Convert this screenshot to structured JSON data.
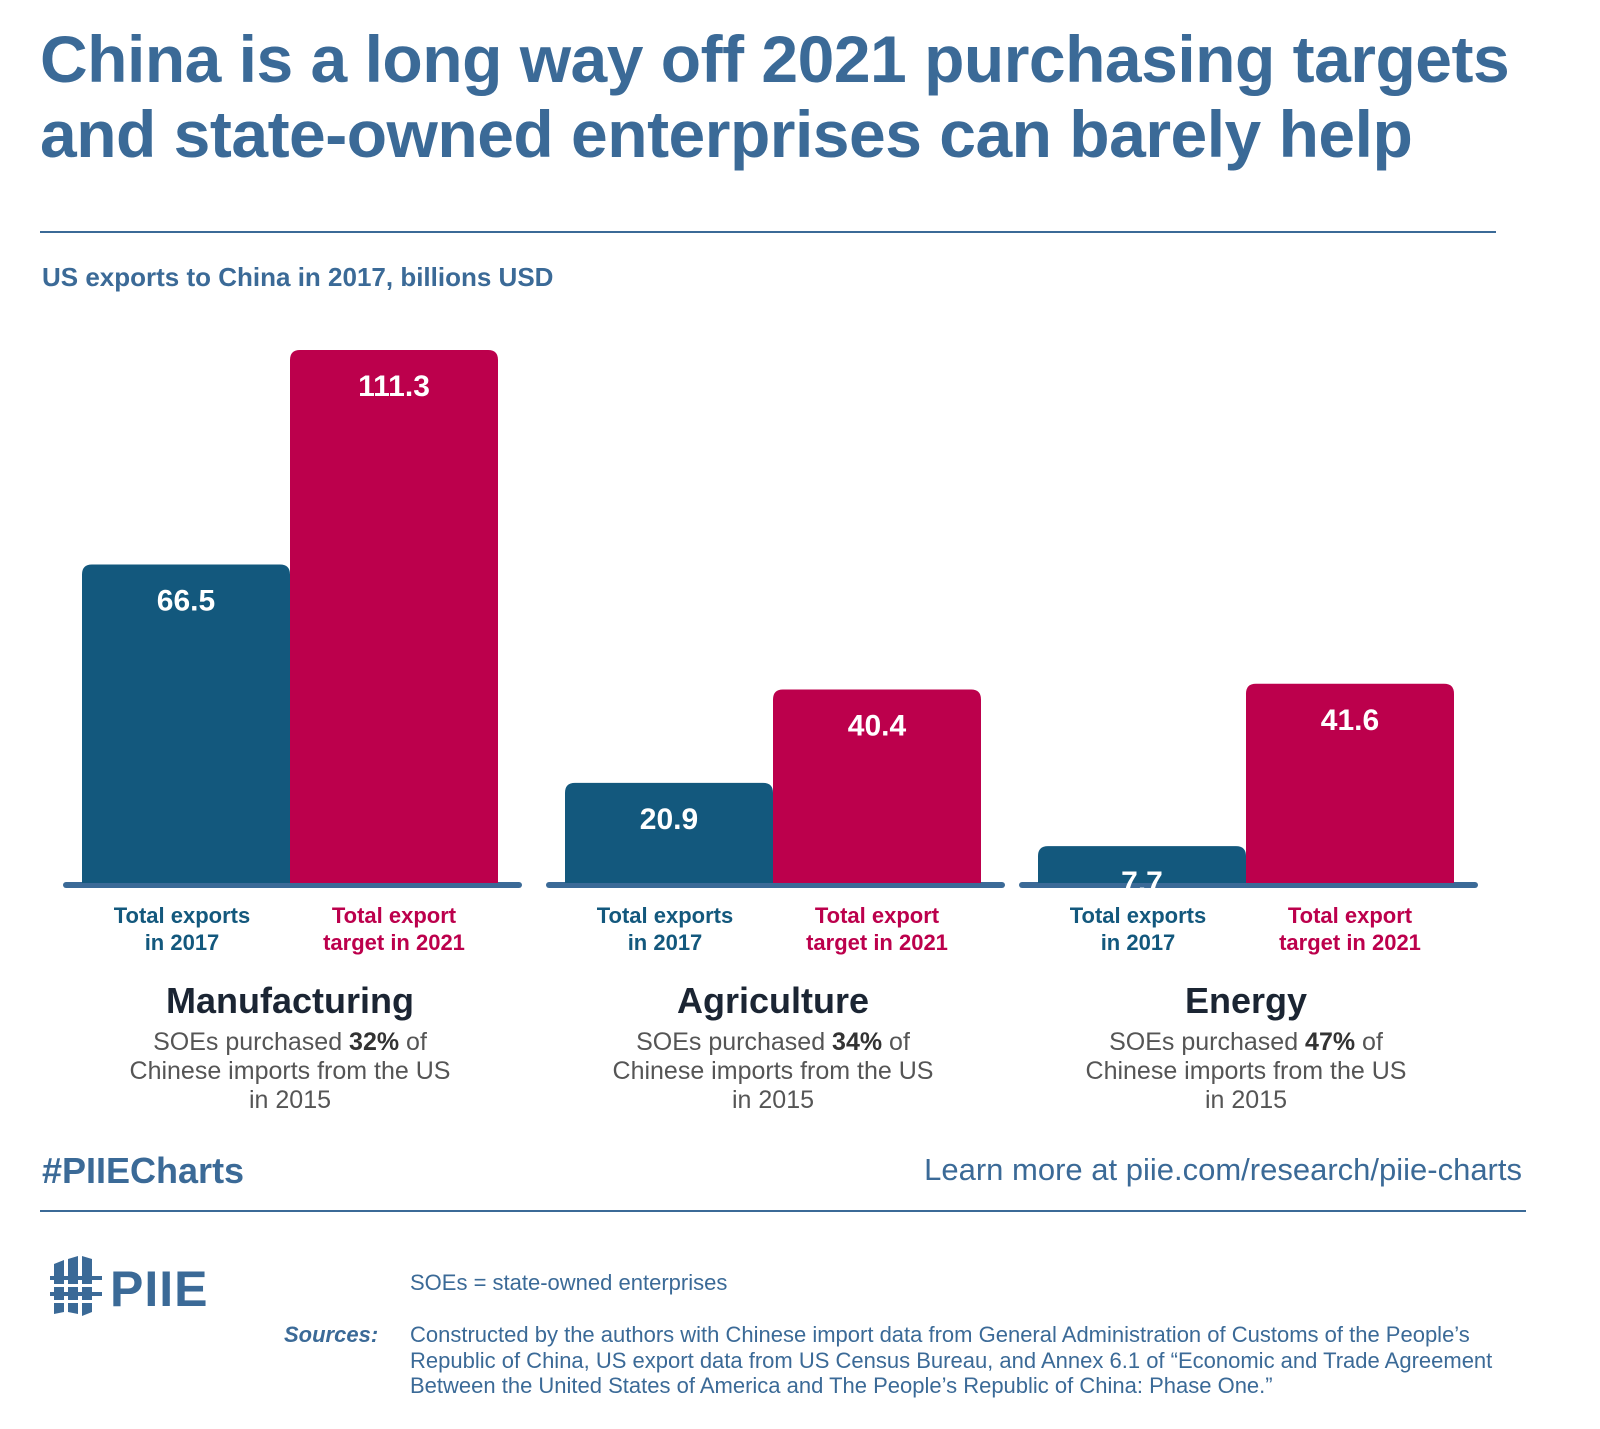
{
  "title": "China is a long way off 2021 purchasing targets and state-owned enterprises can barely help",
  "subtitle": "US exports to China in 2017, billions USD",
  "colors": {
    "exports_2017": "#13587d",
    "target_2021": "#bc004c",
    "accent": "#3b6a97",
    "baseline": "#3b6a97"
  },
  "chart_data": {
    "type": "bar",
    "categories": [
      "Manufacturing",
      "Agriculture",
      "Energy"
    ],
    "series": [
      {
        "name": "Total exports in 2017",
        "values": [
          66.5,
          20.9,
          7.7
        ]
      },
      {
        "name": "Total export target in 2021",
        "values": [
          111.3,
          40.4,
          41.6
        ]
      }
    ],
    "series_labels": [
      [
        "Total exports",
        "in 2017"
      ],
      [
        "Total export",
        "target in 2021"
      ]
    ],
    "ylim": [
      0,
      111.3
    ],
    "grid": false,
    "legend": "none"
  },
  "category_notes": [
    {
      "name": "Manufacturing",
      "prefix": "SOEs purchased ",
      "percent": "32%",
      "suffix_line1": " of",
      "line2": "Chinese imports from the US",
      "line3": "in 2015"
    },
    {
      "name": "Agriculture",
      "prefix": "SOEs purchased ",
      "percent": "34%",
      "suffix_line1": " of",
      "line2": "Chinese imports from the US",
      "line3": "in 2015"
    },
    {
      "name": "Energy",
      "prefix": "SOEs purchased ",
      "percent": "47%",
      "suffix_line1": " of",
      "line2": "Chinese imports from the US",
      "line3": "in 2015"
    }
  ],
  "footer": {
    "hashtag": "#PIIECharts",
    "learn_more": "Learn more at piie.com/research/piie-charts",
    "logo_text": "PIIE",
    "abbreviation": "SOEs = state-owned enterprises",
    "sources_label": "Sources:",
    "sources_text": "Constructed by the authors with Chinese import data from General Administration of Customs of the People’s Republic of China, US export data from US Census Bureau, and Annex 6.1 of “Economic and Trade Agreement Between the United States of America and The People’s Republic of China: Phase One.”",
    "logo_icon": "building-columns-icon"
  }
}
